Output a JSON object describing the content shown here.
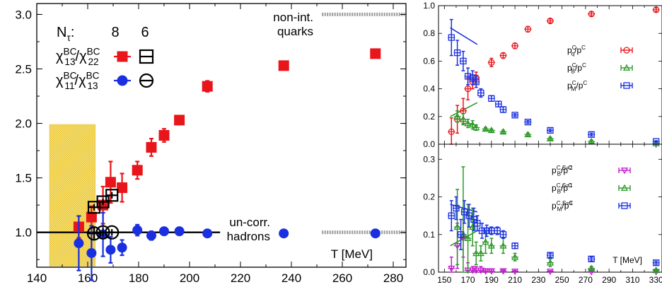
{
  "chart_data": [
    {
      "type": "scatter",
      "xlabel": "T [MeV]",
      "xlim": [
        140,
        285
      ],
      "ylim": [
        0.68,
        3.1
      ],
      "x_ticks": [
        140,
        160,
        180,
        200,
        220,
        240,
        260,
        280
      ],
      "y_ticks": [
        1.0,
        1.5,
        2.0,
        2.5,
        3.0
      ],
      "x_tick_labels": [
        "140",
        "160",
        "180",
        "200",
        "220",
        "240",
        "260",
        "280"
      ],
      "y_tick_labels": [
        "1.0",
        "1.5",
        "2.0",
        "2.5",
        "3.0"
      ],
      "legend": {
        "header_label": "N",
        "header_sub": "τ",
        "header_values": [
          "8",
          "6"
        ],
        "entries": [
          {
            "label": "χ",
            "sup": "BC",
            "sub": "13",
            "mid": "/χ",
            "sup2": "BC",
            "sub2": "22",
            "color": "#e8151b",
            "marker": "square"
          },
          {
            "label": "χ",
            "sup": "BC",
            "sub": "11",
            "mid": "/χ",
            "sup2": "BC",
            "sub2": "13",
            "color": "#1a2fe0",
            "marker": "circle"
          }
        ]
      },
      "annotations": {
        "top_line1": "non-int.",
        "top_line2": "quarks",
        "bottom_line1": "un-corr.",
        "bottom_line2": "hadrons"
      },
      "reference_lines": [
        {
          "y": 3.0,
          "x_from": 252,
          "x_to": 285,
          "style": "dashed-gray"
        },
        {
          "y": 1.0,
          "x_from": 252,
          "x_to": 285,
          "style": "dashed-gray"
        },
        {
          "y": 1.0,
          "x_from": 140,
          "x_to": 212,
          "style": "solid-black"
        }
      ],
      "band": {
        "x_from": 145,
        "x_to": 163,
        "y_from": 0.69,
        "y_to": 1.99,
        "color": "#f3d54a"
      },
      "series": [
        {
          "name": "χ13/χ22 Nτ=8",
          "marker": "filled-square",
          "color": "#e8151b",
          "points": [
            {
              "x": 156.5,
              "y": 1.05,
              "err": 0.1
            },
            {
              "x": 161.5,
              "y": 1.14,
              "err": 0.1
            },
            {
              "x": 166.0,
              "y": 1.25,
              "err": 0.17
            },
            {
              "x": 169.0,
              "y": 1.46,
              "err": 0.19
            },
            {
              "x": 173.5,
              "y": 1.41,
              "err": 0.13
            },
            {
              "x": 179.5,
              "y": 1.57,
              "err": 0.08
            },
            {
              "x": 185.0,
              "y": 1.78,
              "err": 0.08
            },
            {
              "x": 190.0,
              "y": 1.89,
              "err": 0.06
            },
            {
              "x": 196.0,
              "y": 2.03,
              "err": 0.03
            },
            {
              "x": 207.0,
              "y": 2.34,
              "err": 0.05
            },
            {
              "x": 237.0,
              "y": 2.53,
              "err": 0.02
            },
            {
              "x": 273.0,
              "y": 2.64,
              "err": 0.02
            }
          ]
        },
        {
          "name": "χ13/χ22 Nτ=6",
          "marker": "open-square",
          "color": "#000000",
          "points": [
            {
              "x": 162.5,
              "y": 1.23,
              "err": 0.03
            },
            {
              "x": 166.0,
              "y": 1.28,
              "err": 0.03
            },
            {
              "x": 169.5,
              "y": 1.34,
              "err": 0.03
            }
          ]
        },
        {
          "name": "χ11/χ13 Nτ=8",
          "marker": "filled-circle",
          "color": "#1a2fe0",
          "points": [
            {
              "x": 156.5,
              "y": 0.9,
              "err": 0.25
            },
            {
              "x": 161.5,
              "y": 0.81,
              "err": 0.25
            },
            {
              "x": 166.0,
              "y": 0.98,
              "err": 0.2
            },
            {
              "x": 169.0,
              "y": 0.84,
              "err": 0.12
            },
            {
              "x": 173.5,
              "y": 0.86,
              "err": 0.07
            },
            {
              "x": 179.5,
              "y": 1.02,
              "err": 0.05
            },
            {
              "x": 185.0,
              "y": 0.97,
              "err": 0.04
            },
            {
              "x": 190.0,
              "y": 1.01,
              "err": 0.02
            },
            {
              "x": 196.0,
              "y": 1.01,
              "err": 0.02
            },
            {
              "x": 207.0,
              "y": 0.99,
              "err": 0.02
            },
            {
              "x": 237.0,
              "y": 0.99,
              "err": 0.01
            },
            {
              "x": 273.0,
              "y": 0.99,
              "err": 0.01
            }
          ]
        },
        {
          "name": "χ11/χ13 Nτ=6",
          "marker": "open-circle",
          "color": "#000000",
          "points": [
            {
              "x": 162.5,
              "y": 0.99,
              "err": 0.05
            },
            {
              "x": 166.0,
              "y": 1.0,
              "err": 0.04
            },
            {
              "x": 169.5,
              "y": 1.0,
              "err": 0.03
            }
          ]
        }
      ]
    },
    {
      "type": "scatter",
      "xlim": [
        145,
        335
      ],
      "ylim": [
        0.0,
        1.0
      ],
      "y_ticks": [
        0.0,
        0.2,
        0.4,
        0.6,
        0.8,
        1.0
      ],
      "y_tick_labels": [
        "0.0",
        "0.2",
        "0.4",
        "0.6",
        "0.8",
        "1.0"
      ],
      "x_ticks": [
        150,
        170,
        190,
        210,
        230,
        250,
        270,
        290,
        310,
        330
      ],
      "legend": [
        {
          "p": "p",
          "sup": "C",
          "sub": "q",
          "rest": "/p",
          "rest_sup": "C",
          "color": "#e8151b",
          "marker": "circle"
        },
        {
          "p": "p",
          "sup": "C",
          "sub": "B",
          "rest": "/p",
          "rest_sup": "C",
          "color": "#2a9a26",
          "marker": "triangle"
        },
        {
          "p": "p",
          "sup": "C",
          "sub": "M",
          "rest": "/p",
          "rest_sup": "C",
          "color": "#1a2fe0",
          "marker": "square"
        }
      ],
      "lines": [
        {
          "color": "#1a2fe0",
          "points": [
            [
              155,
              0.84
            ],
            [
              178,
              0.72
            ]
          ]
        },
        {
          "color": "#2a9a26",
          "points": [
            [
              155,
              0.2
            ],
            [
              178,
              0.3
            ]
          ]
        }
      ],
      "series": [
        {
          "name": "pq/p",
          "marker": "open-circle",
          "color": "#e8151b",
          "points": [
            {
              "x": 156,
              "y": 0.09,
              "err": 0.1
            },
            {
              "x": 161,
              "y": 0.18,
              "err": 0.1
            },
            {
              "x": 166,
              "y": 0.24,
              "err": 0.09
            },
            {
              "x": 170,
              "y": 0.4,
              "err": 0.08
            },
            {
              "x": 174,
              "y": 0.45,
              "err": 0.05
            },
            {
              "x": 177,
              "y": 0.48,
              "err": 0.04
            },
            {
              "x": 190,
              "y": 0.59,
              "err": 0.03
            },
            {
              "x": 200,
              "y": 0.64,
              "err": 0.02
            },
            {
              "x": 210,
              "y": 0.71,
              "err": 0.02
            },
            {
              "x": 221,
              "y": 0.83,
              "err": 0.02
            },
            {
              "x": 240,
              "y": 0.89,
              "err": 0.015
            },
            {
              "x": 275,
              "y": 0.94,
              "err": 0.015
            },
            {
              "x": 330,
              "y": 0.97,
              "err": 0.015
            }
          ]
        },
        {
          "name": "pB/p",
          "marker": "open-triangle",
          "color": "#2a9a26",
          "points": [
            {
              "x": 161,
              "y": 0.2,
              "err": 0.04
            },
            {
              "x": 166,
              "y": 0.18,
              "err": 0.04
            },
            {
              "x": 170,
              "y": 0.15,
              "err": 0.03
            },
            {
              "x": 174,
              "y": 0.14,
              "err": 0.03
            },
            {
              "x": 177,
              "y": 0.12,
              "err": 0.02
            },
            {
              "x": 185,
              "y": 0.11,
              "err": 0.01
            },
            {
              "x": 190,
              "y": 0.1,
              "err": 0.01
            },
            {
              "x": 200,
              "y": 0.09,
              "err": 0.01
            },
            {
              "x": 221,
              "y": 0.07,
              "err": 0.01
            },
            {
              "x": 240,
              "y": 0.04,
              "err": 0.01
            },
            {
              "x": 275,
              "y": 0.02,
              "err": 0.01
            },
            {
              "x": 330,
              "y": 0.005,
              "err": 0.005
            }
          ]
        },
        {
          "name": "pM/p",
          "marker": "open-square",
          "color": "#1a2fe0",
          "points": [
            {
              "x": 156,
              "y": 0.77,
              "err": 0.13
            },
            {
              "x": 161,
              "y": 0.66,
              "err": 0.09
            },
            {
              "x": 166,
              "y": 0.6,
              "err": 0.07
            },
            {
              "x": 170,
              "y": 0.49,
              "err": 0.06
            },
            {
              "x": 174,
              "y": 0.48,
              "err": 0.05
            },
            {
              "x": 177,
              "y": 0.45,
              "err": 0.04
            },
            {
              "x": 181,
              "y": 0.37,
              "err": 0.03
            },
            {
              "x": 190,
              "y": 0.33,
              "err": 0.02
            },
            {
              "x": 196,
              "y": 0.29,
              "err": 0.02
            },
            {
              "x": 200,
              "y": 0.25,
              "err": 0.02
            },
            {
              "x": 210,
              "y": 0.21,
              "err": 0.01
            },
            {
              "x": 221,
              "y": 0.16,
              "err": 0.01
            },
            {
              "x": 240,
              "y": 0.1,
              "err": 0.01
            },
            {
              "x": 275,
              "y": 0.07,
              "err": 0.01
            },
            {
              "x": 330,
              "y": 0.02,
              "err": 0.005
            }
          ]
        }
      ]
    },
    {
      "type": "scatter",
      "xlabel": "T [MeV]",
      "xlim": [
        145,
        335
      ],
      "ylim": [
        0.0,
        0.34
      ],
      "y_ticks": [
        0.0,
        0.1,
        0.2,
        0.3
      ],
      "y_tick_labels": [
        "0.0",
        "0.1",
        "0.2",
        "0.3"
      ],
      "x_ticks": [
        150,
        170,
        190,
        210,
        230,
        250,
        270,
        290,
        310,
        330
      ],
      "x_tick_labels": [
        "150",
        "170",
        "190",
        "210",
        "230",
        "250",
        "270",
        "290",
        "310",
        "330"
      ],
      "legend": [
        {
          "p": "p",
          "sup": "C,S=2",
          "sub": "B",
          "rest": "/p",
          "rest_sup": "C",
          "color": "#c21ccf",
          "marker": "triangle-down"
        },
        {
          "p": "p",
          "sup": "C,S=1",
          "sub": "B",
          "rest": "/p",
          "rest_sup": "C",
          "color": "#2a9a26",
          "marker": "triangle"
        },
        {
          "p": "p",
          "sup": "C,S=1",
          "sub": "M",
          "rest": "/p",
          "rest_sup": "C",
          "color": "#1a2fe0",
          "marker": "square"
        }
      ],
      "lines": [
        {
          "color": "#1a2fe0",
          "points": [
            [
              155,
              0.18
            ],
            [
              178,
              0.16
            ]
          ]
        },
        {
          "color": "#2a9a26",
          "points": [
            [
              155,
              0.07
            ],
            [
              178,
              0.11
            ]
          ]
        }
      ],
      "series": [
        {
          "name": "pB S=2",
          "marker": "open-triangle-down",
          "color": "#c21ccf",
          "points": [
            {
              "x": 156,
              "y": 0.01,
              "err": 0.03
            },
            {
              "x": 161,
              "y": 0.07,
              "err": 0.06
            },
            {
              "x": 166,
              "y": 0.09,
              "err": 0.05
            },
            {
              "x": 170,
              "y": 0.005,
              "err": 0.02
            },
            {
              "x": 174,
              "y": 0.005,
              "err": 0.01
            },
            {
              "x": 177,
              "y": 0.005,
              "err": 0.01
            },
            {
              "x": 181,
              "y": 0.005,
              "err": 0.01
            },
            {
              "x": 185,
              "y": 0.003,
              "err": 0.005
            },
            {
              "x": 190,
              "y": 0.003,
              "err": 0.005
            },
            {
              "x": 200,
              "y": 0.003,
              "err": 0.003
            },
            {
              "x": 210,
              "y": 0.002,
              "err": 0.002
            },
            {
              "x": 240,
              "y": 0.002,
              "err": 0.002
            },
            {
              "x": 275,
              "y": 0.001,
              "err": 0.001
            },
            {
              "x": 330,
              "y": 0.001,
              "err": 0.001
            }
          ]
        },
        {
          "name": "pB S=1",
          "marker": "open-triangle",
          "color": "#2a9a26",
          "points": [
            {
              "x": 161,
              "y": 0.12,
              "err": 0.1
            },
            {
              "x": 166,
              "y": 0.1,
              "err": 0.18
            },
            {
              "x": 170,
              "y": 0.09,
              "err": 0.09
            },
            {
              "x": 174,
              "y": 0.12,
              "err": 0.05
            },
            {
              "x": 177,
              "y": 0.05,
              "err": 0.03
            },
            {
              "x": 181,
              "y": 0.05,
              "err": 0.02
            },
            {
              "x": 185,
              "y": 0.08,
              "err": 0.03
            },
            {
              "x": 190,
              "y": 0.07,
              "err": 0.02
            },
            {
              "x": 200,
              "y": 0.07,
              "err": 0.02
            },
            {
              "x": 210,
              "y": 0.04,
              "err": 0.01
            },
            {
              "x": 240,
              "y": 0.025,
              "err": 0.01
            },
            {
              "x": 275,
              "y": 0.01,
              "err": 0.005
            },
            {
              "x": 330,
              "y": 0.005,
              "err": 0.003
            }
          ]
        },
        {
          "name": "pM S=1",
          "marker": "open-square",
          "color": "#1a2fe0",
          "points": [
            {
              "x": 156,
              "y": 0.15,
              "err": 0.04
            },
            {
              "x": 160,
              "y": 0.17,
              "err": 0.03
            },
            {
              "x": 164,
              "y": 0.1,
              "err": 0.04
            },
            {
              "x": 167,
              "y": 0.16,
              "err": 0.03
            },
            {
              "x": 171,
              "y": 0.15,
              "err": 0.03
            },
            {
              "x": 175,
              "y": 0.14,
              "err": 0.03
            },
            {
              "x": 178,
              "y": 0.13,
              "err": 0.02
            },
            {
              "x": 182,
              "y": 0.11,
              "err": 0.02
            },
            {
              "x": 186,
              "y": 0.11,
              "err": 0.015
            },
            {
              "x": 190,
              "y": 0.11,
              "err": 0.01
            },
            {
              "x": 195,
              "y": 0.11,
              "err": 0.01
            },
            {
              "x": 200,
              "y": 0.1,
              "err": 0.01
            },
            {
              "x": 210,
              "y": 0.07,
              "err": 0.007
            },
            {
              "x": 240,
              "y": 0.045,
              "err": 0.005
            },
            {
              "x": 275,
              "y": 0.035,
              "err": 0.005
            },
            {
              "x": 330,
              "y": 0.025,
              "err": 0.004
            }
          ]
        }
      ]
    }
  ]
}
